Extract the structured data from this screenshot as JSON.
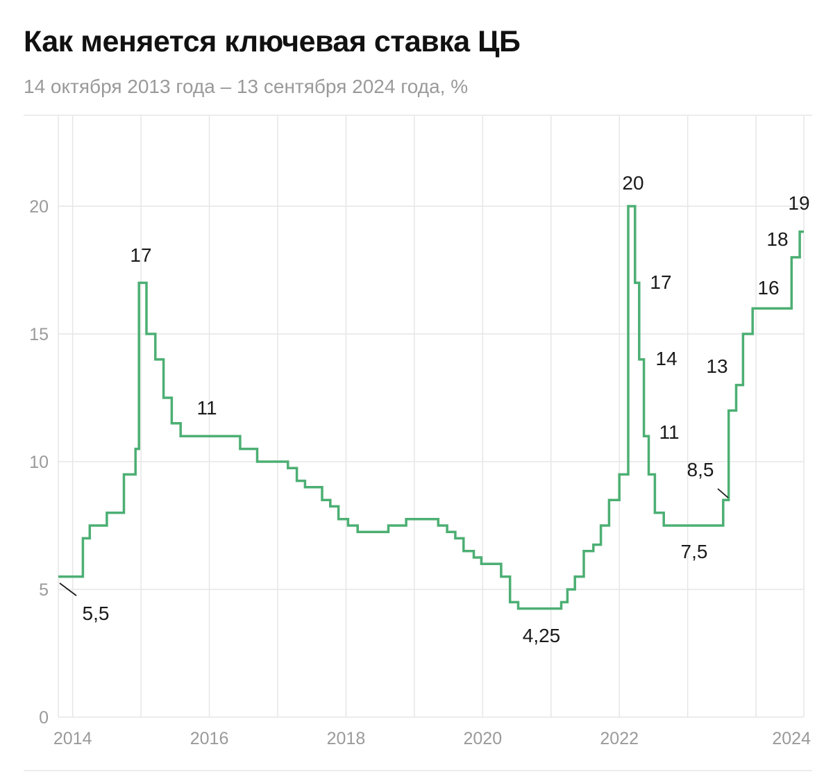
{
  "chart_data": {
    "type": "line",
    "title": "Как меняется ключевая ставка ЦБ",
    "subtitle": "14 октября 2013 года – 13 сентября 2024 года, %",
    "xlabel": "",
    "ylabel": "",
    "xlim": [
      2013.79,
      2024.7
    ],
    "ylim": [
      0,
      22
    ],
    "x_tick_labels": [
      "2014",
      "2016",
      "2018",
      "2020",
      "2022",
      "2024"
    ],
    "y_tick_labels": [
      "0",
      "5",
      "10",
      "15",
      "20"
    ],
    "grid": true,
    "line_color": "#4caf73",
    "series": [
      {
        "step": "post",
        "points": [
          [
            2013.79,
            5.5
          ],
          [
            2014.15,
            7.0
          ],
          [
            2014.25,
            7.5
          ],
          [
            2014.5,
            8.0
          ],
          [
            2014.75,
            9.5
          ],
          [
            2014.92,
            10.5
          ],
          [
            2014.97,
            17.0
          ],
          [
            2015.08,
            15.0
          ],
          [
            2015.21,
            14.0
          ],
          [
            2015.33,
            12.5
          ],
          [
            2015.45,
            11.5
          ],
          [
            2015.58,
            11.0
          ],
          [
            2016.45,
            10.5
          ],
          [
            2016.7,
            10.0
          ],
          [
            2017.15,
            9.75
          ],
          [
            2017.28,
            9.25
          ],
          [
            2017.4,
            9.0
          ],
          [
            2017.65,
            8.5
          ],
          [
            2017.77,
            8.25
          ],
          [
            2017.89,
            7.75
          ],
          [
            2018.03,
            7.5
          ],
          [
            2018.17,
            7.25
          ],
          [
            2018.62,
            7.5
          ],
          [
            2018.88,
            7.75
          ],
          [
            2019.35,
            7.5
          ],
          [
            2019.48,
            7.25
          ],
          [
            2019.6,
            7.0
          ],
          [
            2019.72,
            6.5
          ],
          [
            2019.87,
            6.25
          ],
          [
            2019.98,
            6.0
          ],
          [
            2020.27,
            5.5
          ],
          [
            2020.4,
            4.5
          ],
          [
            2020.52,
            4.25
          ],
          [
            2021.15,
            4.5
          ],
          [
            2021.24,
            5.0
          ],
          [
            2021.35,
            5.5
          ],
          [
            2021.48,
            6.5
          ],
          [
            2021.62,
            6.75
          ],
          [
            2021.73,
            7.5
          ],
          [
            2021.85,
            8.5
          ],
          [
            2022.0,
            9.5
          ],
          [
            2022.13,
            20.0
          ],
          [
            2022.23,
            17.0
          ],
          [
            2022.29,
            14.0
          ],
          [
            2022.36,
            11.0
          ],
          [
            2022.43,
            9.5
          ],
          [
            2022.52,
            8.0
          ],
          [
            2022.65,
            7.5
          ],
          [
            2023.52,
            8.5
          ],
          [
            2023.6,
            12.0
          ],
          [
            2023.71,
            13.0
          ],
          [
            2023.81,
            15.0
          ],
          [
            2023.95,
            16.0
          ],
          [
            2024.52,
            18.0
          ],
          [
            2024.64,
            19.0
          ],
          [
            2024.7,
            19.0
          ]
        ]
      }
    ],
    "annotations": [
      {
        "text": "5,5"
      },
      {
        "text": "17"
      },
      {
        "text": "11"
      },
      {
        "text": "4,25"
      },
      {
        "text": "20"
      },
      {
        "text": "17"
      },
      {
        "text": "14"
      },
      {
        "text": "11"
      },
      {
        "text": "7,5"
      },
      {
        "text": "8,5"
      },
      {
        "text": "13"
      },
      {
        "text": "16"
      },
      {
        "text": "18"
      },
      {
        "text": "19"
      }
    ]
  }
}
